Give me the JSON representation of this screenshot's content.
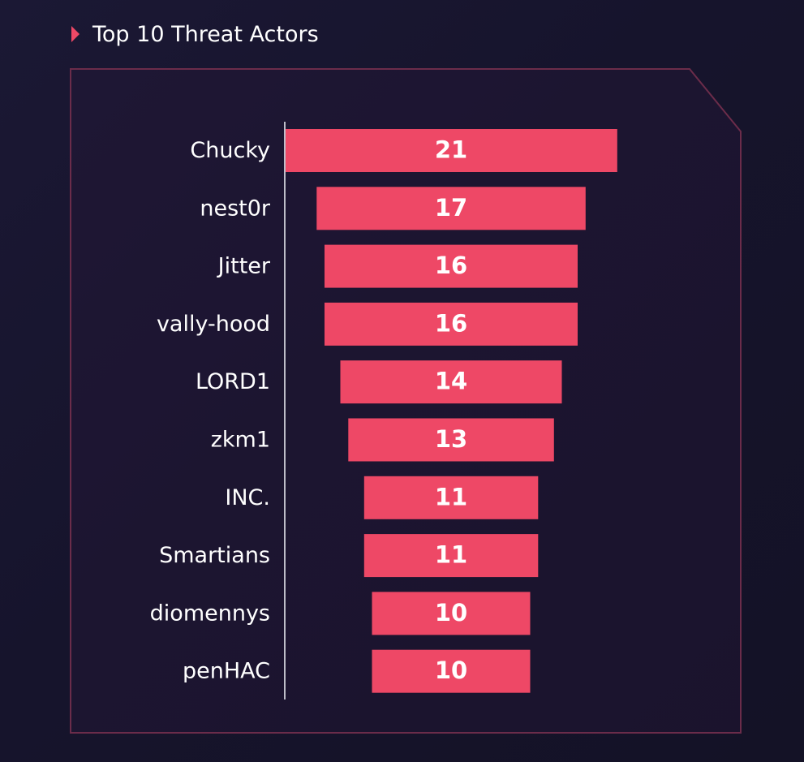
{
  "page": {
    "title": "Top 10 Threat Actors"
  },
  "colors": {
    "background": "#16142c",
    "bar": "#ee4866",
    "accent_arrow": "#ee4866",
    "frame": "#6b2c4a",
    "axis": "#bdbdc8",
    "text": "#ffffff"
  },
  "chart_data": {
    "type": "bar",
    "orientation": "horizontal",
    "alignment": "centered (funnel)",
    "title": "Top 10 Threat Actors",
    "categories": [
      "Chucky",
      "nest0r",
      "Jitter",
      "vally-hood",
      "LORD1",
      "zkm1",
      "INC.",
      "Smartians",
      "diomennys",
      "penHAC"
    ],
    "values": [
      21,
      17,
      16,
      16,
      14,
      13,
      11,
      11,
      10,
      10
    ],
    "data_labels": [
      "21",
      "17",
      "16",
      "16",
      "14",
      "13",
      "11",
      "11",
      "10",
      "10"
    ],
    "xlabel": "",
    "ylabel": "",
    "grid": false,
    "legend": "none"
  }
}
